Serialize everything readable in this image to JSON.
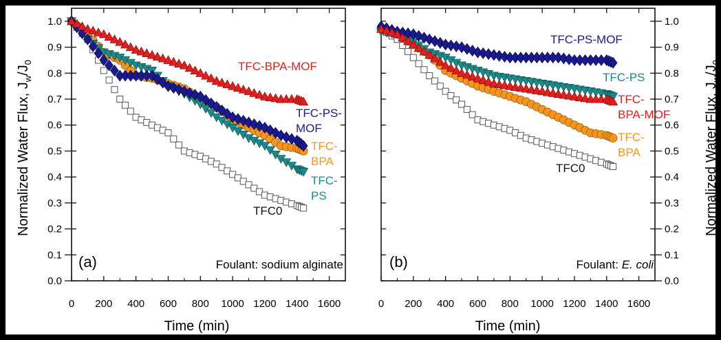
{
  "chart_data": [
    {
      "type": "scatter",
      "panel_tag": "(a)",
      "foulant_prefix": "Foulant: ",
      "foulant_name": "sodium alginate",
      "foulant_italic": false,
      "xlabel": "Time  (min)",
      "ylabel": "Normalized Water Flux, J",
      "xlim": [
        0,
        1700
      ],
      "ylim": [
        0,
        1.05
      ],
      "x_ticks": [
        "0",
        "200",
        "400",
        "600",
        "800",
        "1000",
        "1200",
        "1400",
        "1600"
      ],
      "y_ticks": [
        "0.0",
        "0.1",
        "0.2",
        "0.3",
        "0.4",
        "0.5",
        "0.6",
        "0.7",
        "0.8",
        "0.9",
        "1.0"
      ],
      "series": [
        {
          "name": "TFC0",
          "marker": "square-open",
          "color": "#555555",
          "label": [
            "TFC0"
          ],
          "points": [
            [
              0,
              1.0
            ],
            [
              100,
              0.93
            ],
            [
              200,
              0.81
            ],
            [
              300,
              0.7
            ],
            [
              400,
              0.63
            ],
            [
              500,
              0.6
            ],
            [
              600,
              0.57
            ],
            [
              700,
              0.5
            ],
            [
              800,
              0.48
            ],
            [
              900,
              0.45
            ],
            [
              1000,
              0.41
            ],
            [
              1100,
              0.37
            ],
            [
              1200,
              0.33
            ],
            [
              1300,
              0.31
            ],
            [
              1400,
              0.29
            ],
            [
              1440,
              0.28
            ]
          ]
        },
        {
          "name": "TFC-BPA",
          "marker": "circle",
          "color": "#F7941D",
          "label": [
            "TFC-",
            "BPA"
          ],
          "points": [
            [
              0,
              1.0
            ],
            [
              100,
              0.95
            ],
            [
              200,
              0.88
            ],
            [
              300,
              0.85
            ],
            [
              400,
              0.79
            ],
            [
              500,
              0.78
            ],
            [
              600,
              0.76
            ],
            [
              700,
              0.74
            ],
            [
              800,
              0.7
            ],
            [
              900,
              0.67
            ],
            [
              1000,
              0.62
            ],
            [
              1100,
              0.59
            ],
            [
              1200,
              0.56
            ],
            [
              1300,
              0.52
            ],
            [
              1400,
              0.51
            ],
            [
              1440,
              0.5
            ]
          ]
        },
        {
          "name": "TFC-PS",
          "marker": "triangle-down",
          "color": "#1B8A8A",
          "label": [
            "TFC-",
            "PS"
          ],
          "points": [
            [
              0,
              1.0
            ],
            [
              100,
              0.93
            ],
            [
              200,
              0.88
            ],
            [
              300,
              0.86
            ],
            [
              400,
              0.83
            ],
            [
              500,
              0.81
            ],
            [
              600,
              0.75
            ],
            [
              700,
              0.72
            ],
            [
              800,
              0.68
            ],
            [
              900,
              0.63
            ],
            [
              1000,
              0.59
            ],
            [
              1100,
              0.55
            ],
            [
              1200,
              0.52
            ],
            [
              1300,
              0.47
            ],
            [
              1400,
              0.43
            ],
            [
              1440,
              0.42
            ]
          ]
        },
        {
          "name": "TFC-PS-MOF",
          "marker": "diamond",
          "color": "#1A1A8C",
          "label": [
            "TFC-PS-",
            "MOF"
          ],
          "points": [
            [
              0,
              1.0
            ],
            [
              100,
              0.93
            ],
            [
              200,
              0.85
            ],
            [
              300,
              0.79
            ],
            [
              400,
              0.79
            ],
            [
              500,
              0.79
            ],
            [
              600,
              0.75
            ],
            [
              700,
              0.73
            ],
            [
              800,
              0.71
            ],
            [
              900,
              0.67
            ],
            [
              1000,
              0.63
            ],
            [
              1100,
              0.61
            ],
            [
              1200,
              0.59
            ],
            [
              1300,
              0.56
            ],
            [
              1400,
              0.54
            ],
            [
              1440,
              0.52
            ]
          ]
        },
        {
          "name": "TFC-BPA-MOF",
          "marker": "triangle-up",
          "color": "#E02020",
          "label": [
            "TFC-BPA-MOF"
          ],
          "points": [
            [
              0,
              1.0
            ],
            [
              100,
              0.97
            ],
            [
              200,
              0.95
            ],
            [
              300,
              0.92
            ],
            [
              400,
              0.89
            ],
            [
              500,
              0.87
            ],
            [
              600,
              0.85
            ],
            [
              700,
              0.83
            ],
            [
              800,
              0.8
            ],
            [
              900,
              0.77
            ],
            [
              1000,
              0.75
            ],
            [
              1100,
              0.73
            ],
            [
              1200,
              0.71
            ],
            [
              1300,
              0.7
            ],
            [
              1400,
              0.7
            ],
            [
              1440,
              0.69
            ]
          ]
        }
      ]
    },
    {
      "type": "scatter",
      "panel_tag": "(b)",
      "foulant_prefix": "Foulant: ",
      "foulant_name": "E. coli",
      "foulant_italic": true,
      "xlabel": "Time  (min)",
      "ylabel": "Normalized Water Flux, J",
      "xlim": [
        0,
        1700
      ],
      "ylim": [
        0,
        1.05
      ],
      "x_ticks": [
        "0",
        "200",
        "400",
        "600",
        "800",
        "1000",
        "1200",
        "1400",
        "1600"
      ],
      "y_ticks": [
        "0.0",
        "0.1",
        "0.2",
        "0.3",
        "0.4",
        "0.5",
        "0.6",
        "0.7",
        "0.8",
        "0.9",
        "1.0"
      ],
      "series": [
        {
          "name": "TFC0",
          "marker": "square-open",
          "color": "#555555",
          "label": [
            "TFC0"
          ],
          "points": [
            [
              0,
              0.97
            ],
            [
              100,
              0.93
            ],
            [
              200,
              0.86
            ],
            [
              300,
              0.79
            ],
            [
              400,
              0.73
            ],
            [
              500,
              0.68
            ],
            [
              600,
              0.62
            ],
            [
              700,
              0.6
            ],
            [
              800,
              0.58
            ],
            [
              900,
              0.55
            ],
            [
              1000,
              0.53
            ],
            [
              1100,
              0.51
            ],
            [
              1200,
              0.49
            ],
            [
              1300,
              0.47
            ],
            [
              1400,
              0.45
            ],
            [
              1440,
              0.44
            ]
          ]
        },
        {
          "name": "TFC-BPA",
          "marker": "circle",
          "color": "#F7941D",
          "label": [
            "TFC-",
            "BPA"
          ],
          "points": [
            [
              0,
              0.97
            ],
            [
              100,
              0.95
            ],
            [
              200,
              0.91
            ],
            [
              300,
              0.87
            ],
            [
              400,
              0.81
            ],
            [
              500,
              0.78
            ],
            [
              600,
              0.75
            ],
            [
              700,
              0.73
            ],
            [
              800,
              0.71
            ],
            [
              900,
              0.69
            ],
            [
              1000,
              0.66
            ],
            [
              1100,
              0.63
            ],
            [
              1200,
              0.6
            ],
            [
              1300,
              0.57
            ],
            [
              1400,
              0.56
            ],
            [
              1440,
              0.55
            ]
          ]
        },
        {
          "name": "TFC-PS",
          "marker": "triangle-down",
          "color": "#1B8A8A",
          "label": [
            "TFC-PS"
          ],
          "points": [
            [
              0,
              0.96
            ],
            [
              100,
              0.95
            ],
            [
              200,
              0.92
            ],
            [
              300,
              0.88
            ],
            [
              400,
              0.86
            ],
            [
              500,
              0.83
            ],
            [
              600,
              0.81
            ],
            [
              700,
              0.79
            ],
            [
              800,
              0.78
            ],
            [
              900,
              0.77
            ],
            [
              1000,
              0.76
            ],
            [
              1100,
              0.75
            ],
            [
              1200,
              0.74
            ],
            [
              1300,
              0.73
            ],
            [
              1400,
              0.72
            ],
            [
              1440,
              0.71
            ]
          ]
        },
        {
          "name": "TFC-PS-MOF",
          "marker": "diamond",
          "color": "#1A1A8C",
          "label": [
            "TFC-PS-MOF"
          ],
          "points": [
            [
              0,
              0.98
            ],
            [
              100,
              0.96
            ],
            [
              200,
              0.95
            ],
            [
              300,
              0.93
            ],
            [
              400,
              0.91
            ],
            [
              500,
              0.9
            ],
            [
              600,
              0.88
            ],
            [
              700,
              0.87
            ],
            [
              800,
              0.86
            ],
            [
              900,
              0.86
            ],
            [
              1000,
              0.86
            ],
            [
              1100,
              0.86
            ],
            [
              1200,
              0.85
            ],
            [
              1300,
              0.85
            ],
            [
              1400,
              0.85
            ],
            [
              1440,
              0.84
            ]
          ]
        },
        {
          "name": "TFC-BPA-MOF",
          "marker": "triangle-up",
          "color": "#E02020",
          "label": [
            "TFC-",
            "BPA-MOF"
          ],
          "points": [
            [
              0,
              0.97
            ],
            [
              100,
              0.95
            ],
            [
              200,
              0.91
            ],
            [
              300,
              0.87
            ],
            [
              400,
              0.83
            ],
            [
              500,
              0.8
            ],
            [
              600,
              0.78
            ],
            [
              700,
              0.76
            ],
            [
              800,
              0.75
            ],
            [
              900,
              0.74
            ],
            [
              1000,
              0.73
            ],
            [
              1100,
              0.72
            ],
            [
              1200,
              0.71
            ],
            [
              1300,
              0.7
            ],
            [
              1400,
              0.7
            ],
            [
              1440,
              0.69
            ]
          ]
        }
      ]
    }
  ],
  "ylabel_sub_w": "w",
  "ylabel_slash": "/J",
  "ylabel_sub_0": "0"
}
